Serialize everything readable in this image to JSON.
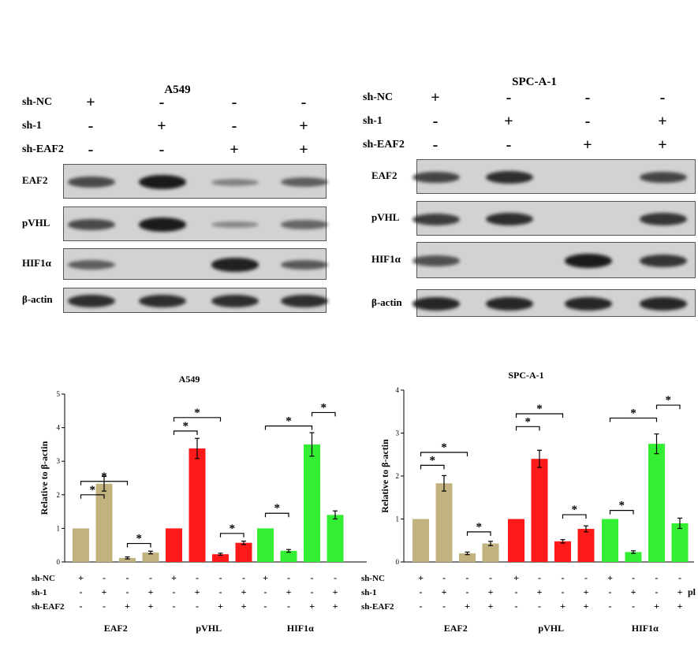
{
  "western_blots": [
    {
      "title": "A549",
      "rows": [
        {
          "label": "sh-NC",
          "signs": [
            "+",
            "-",
            "-",
            "-"
          ]
        },
        {
          "label": "sh-1",
          "signs": [
            "-",
            "+",
            "-",
            "+"
          ]
        },
        {
          "label": "sh-EAF2",
          "signs": [
            "-",
            "-",
            "+",
            "+"
          ]
        }
      ],
      "proteins": [
        {
          "label": "EAF2",
          "intensity": [
            0.65,
            1.0,
            0.25,
            0.5
          ]
        },
        {
          "label": "pVHL",
          "intensity": [
            0.65,
            1.0,
            0.2,
            0.45
          ]
        },
        {
          "label": "HIF1α",
          "intensity": [
            0.5,
            0.0,
            0.95,
            0.55
          ]
        },
        {
          "label": "β-actin",
          "intensity": [
            0.85,
            0.85,
            0.85,
            0.85
          ]
        }
      ]
    },
    {
      "title": "SPC-A-1",
      "rows": [
        {
          "label": "sh-NC",
          "signs": [
            "+",
            "-",
            "-",
            "-"
          ]
        },
        {
          "label": "sh-1",
          "signs": [
            "-",
            "+",
            "-",
            "+"
          ]
        },
        {
          "label": "sh-EAF2",
          "signs": [
            "-",
            "-",
            "+",
            "+"
          ]
        }
      ],
      "proteins": [
        {
          "label": "EAF2",
          "intensity": [
            0.7,
            0.85,
            0.0,
            0.7
          ]
        },
        {
          "label": "pVHL",
          "intensity": [
            0.75,
            0.85,
            0.0,
            0.8
          ]
        },
        {
          "label": "HIF1α",
          "intensity": [
            0.6,
            0.0,
            1.0,
            0.8
          ]
        },
        {
          "label": "β-actin",
          "intensity": [
            0.9,
            0.9,
            0.9,
            0.9
          ]
        }
      ]
    }
  ],
  "chart_data": [
    {
      "type": "bar",
      "title": "A549",
      "ylabel": "Relative to β-actin",
      "ylim": [
        0,
        5
      ],
      "yticks": [
        0,
        1,
        2,
        3,
        4,
        5
      ],
      "groups": [
        "EAF2",
        "pVHL",
        "HIF1α"
      ],
      "group_colors": [
        "#c2b280",
        "#ff1a1a",
        "#33ee33"
      ],
      "values": [
        [
          1.0,
          2.33,
          0.12,
          0.28
        ],
        [
          1.0,
          3.38,
          0.23,
          0.57
        ],
        [
          1.0,
          0.33,
          3.5,
          1.4
        ]
      ],
      "errors": [
        [
          0.0,
          0.22,
          0.03,
          0.04
        ],
        [
          0.0,
          0.3,
          0.03,
          0.05
        ],
        [
          0.0,
          0.04,
          0.35,
          0.12
        ]
      ],
      "condition_rows": [
        {
          "label": "sh-NC",
          "signs": [
            "+",
            "-",
            "-",
            "-"
          ]
        },
        {
          "label": "sh-1",
          "signs": [
            "-",
            "+",
            "-",
            "+"
          ]
        },
        {
          "label": "sh-EAF2",
          "signs": [
            "-",
            "-",
            "+",
            "+"
          ]
        }
      ],
      "significance": [
        {
          "group": 0,
          "from": 0,
          "to": 1,
          "level": 2.0,
          "label": "*"
        },
        {
          "group": 0,
          "from": 0,
          "to": 2,
          "level": 2.4,
          "label": "*"
        },
        {
          "group": 0,
          "from": 2,
          "to": 3,
          "level": 0.55,
          "label": "*"
        },
        {
          "group": 1,
          "from": 0,
          "to": 1,
          "level": 3.9,
          "label": "*"
        },
        {
          "group": 1,
          "from": 0,
          "to": 2,
          "level": 4.3,
          "label": "*"
        },
        {
          "group": 1,
          "from": 2,
          "to": 3,
          "level": 0.85,
          "label": "*"
        },
        {
          "group": 2,
          "from": 0,
          "to": 2,
          "level": 4.05,
          "label": "*"
        },
        {
          "group": 2,
          "from": 2,
          "to": 3,
          "level": 4.45,
          "label": "*"
        },
        {
          "group": 2,
          "from": 0,
          "to": 1,
          "level": 1.45,
          "label": "*"
        }
      ]
    },
    {
      "type": "bar",
      "title": "SPC-A-1",
      "ylabel": "Relative to β-actin",
      "ylim": [
        0,
        4
      ],
      "yticks": [
        0,
        1,
        2,
        3,
        4
      ],
      "groups": [
        "EAF2",
        "pVHL",
        "HIF1α"
      ],
      "group_colors": [
        "#c2b280",
        "#ff1a1a",
        "#33ee33"
      ],
      "values": [
        [
          1.0,
          1.83,
          0.2,
          0.43
        ],
        [
          1.0,
          2.4,
          0.48,
          0.77
        ],
        [
          1.0,
          0.23,
          2.75,
          0.9
        ]
      ],
      "errors": [
        [
          0.0,
          0.18,
          0.03,
          0.05
        ],
        [
          0.0,
          0.2,
          0.04,
          0.07
        ],
        [
          0.0,
          0.03,
          0.23,
          0.12
        ]
      ],
      "condition_rows": [
        {
          "label": "sh-NC",
          "signs": [
            "+",
            "-",
            "-",
            "-"
          ]
        },
        {
          "label": "sh-1",
          "signs": [
            "-",
            "+",
            "-",
            "+"
          ]
        },
        {
          "label": "sh-EAF2",
          "signs": [
            "-",
            "-",
            "+",
            "+"
          ]
        }
      ],
      "significance": [
        {
          "group": 0,
          "from": 0,
          "to": 1,
          "level": 2.25,
          "label": "*"
        },
        {
          "group": 0,
          "from": 0,
          "to": 2,
          "level": 2.55,
          "label": "*"
        },
        {
          "group": 0,
          "from": 2,
          "to": 3,
          "level": 0.7,
          "label": "*"
        },
        {
          "group": 1,
          "from": 0,
          "to": 1,
          "level": 3.15,
          "label": "*"
        },
        {
          "group": 1,
          "from": 0,
          "to": 2,
          "level": 3.45,
          "label": "*"
        },
        {
          "group": 1,
          "from": 2,
          "to": 3,
          "level": 1.1,
          "label": "*"
        },
        {
          "group": 2,
          "from": 0,
          "to": 2,
          "level": 3.35,
          "label": "*"
        },
        {
          "group": 2,
          "from": 2,
          "to": 3,
          "level": 3.65,
          "label": "*"
        },
        {
          "group": 2,
          "from": 0,
          "to": 1,
          "level": 1.2,
          "label": "*"
        }
      ],
      "cut_text": "pl"
    }
  ]
}
